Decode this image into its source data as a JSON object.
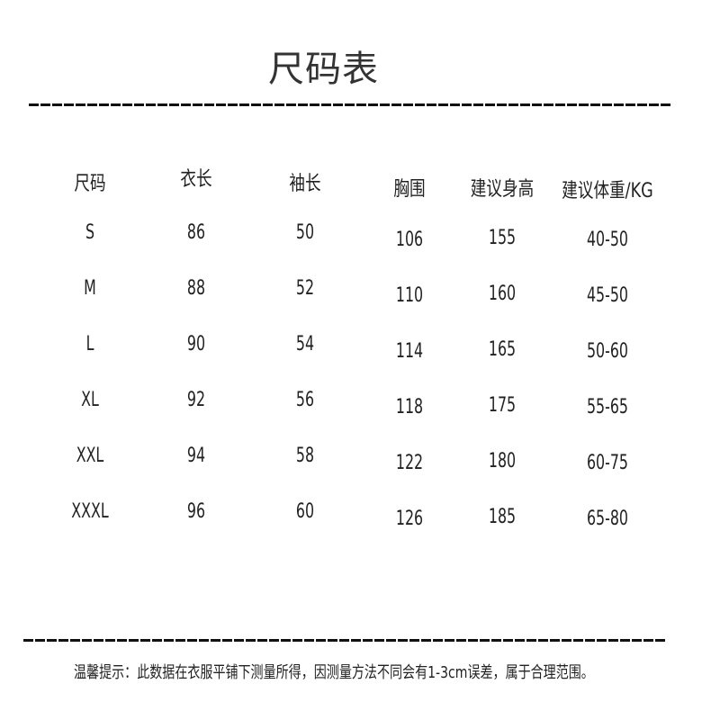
{
  "title": "尺码表",
  "table": {
    "headers": [
      "尺码",
      "衣长",
      "袖长",
      "胸围",
      "建议身高",
      "建议体重/KG"
    ],
    "rows": [
      [
        "S",
        "86",
        "50",
        "106",
        "155",
        "40-50"
      ],
      [
        "M",
        "88",
        "52",
        "110",
        "160",
        "45-50"
      ],
      [
        "L",
        "90",
        "54",
        "114",
        "165",
        "50-60"
      ],
      [
        "XL",
        "92",
        "56",
        "118",
        "175",
        "55-65"
      ],
      [
        "XXL",
        "94",
        "58",
        "122",
        "180",
        "60-75"
      ],
      [
        "XXXL",
        "96",
        "60",
        "126",
        "185",
        "65-80"
      ]
    ]
  },
  "footer": "温馨提示：此数据在衣服平铺下测量所得，因测量方法不同会有1-3cm误差，属于合理范围。"
}
